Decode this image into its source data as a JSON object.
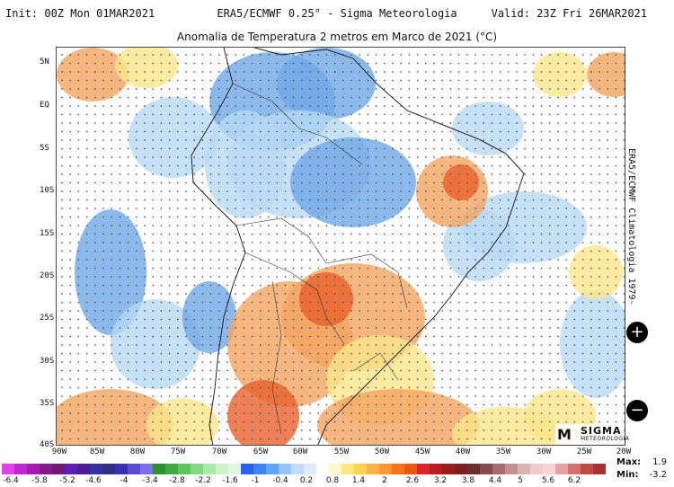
{
  "header": {
    "init": "Init: 00Z Mon 01MAR2021",
    "source": "ERA5/ECMWF 0.25° - Sigma Meteorologia",
    "valid": "Valid: 23Z Fri 26MAR2021"
  },
  "map_title": "Anomalia de Temperatura 2 metros em Marco de 2021 (°C)",
  "side_label": "ERA5/ECMWF Climatologia 1979-",
  "lat_labels": [
    "5N",
    "EQ",
    "5S",
    "10S",
    "15S",
    "20S",
    "25S",
    "30S",
    "35S",
    "40S"
  ],
  "lon_labels": [
    "90W",
    "85W",
    "80W",
    "75W",
    "70W",
    "65W",
    "60W",
    "55W",
    "50W",
    "45W",
    "40W",
    "35W",
    "30W",
    "25W",
    "20W"
  ],
  "colorbar": {
    "labels": [
      "-6.4",
      "-5.8",
      "-5.2",
      "-4.6",
      "-4",
      "-3.4",
      "-2.8",
      "-2.2",
      "-1.6",
      "-1",
      "-0.4",
      "0.2",
      "0.8",
      "1.4",
      "2",
      "2.6",
      "3.2",
      "3.8",
      "4.4",
      "5",
      "5.6",
      "6.2"
    ],
    "colors": [
      "#e040e8",
      "#c026d3",
      "#a21caf",
      "#86198f",
      "#701a75",
      "#5b21b6",
      "#4c1d95",
      "#3730a3",
      "#312e81",
      "#3b2fb0",
      "#5a4ad6",
      "#7c6ee8",
      "#2f8f2f",
      "#3faa3f",
      "#5cc45c",
      "#80d880",
      "#a8eaa8",
      "#c8f4c8",
      "#dff7df",
      "#2563eb",
      "#3b82f6",
      "#60a5fa",
      "#93c5fd",
      "#bfdbfe",
      "#dbeafe",
      "#ffffff",
      "#fff6cc",
      "#ffe680",
      "#ffd24d",
      "#ffb347",
      "#ff9633",
      "#f97316",
      "#ea580c",
      "#dc2626",
      "#b91c1c",
      "#991b1b",
      "#7f1d1d",
      "#6b2f2f",
      "#8a4a4a",
      "#a86b6b",
      "#c48f8f",
      "#dcb3b3",
      "#eecccc",
      "#f5d5d5",
      "#e6a0a0",
      "#d47070",
      "#c04848",
      "#a83030"
    ]
  },
  "stats": {
    "max_label": "Max:",
    "max_value": "1.9",
    "min_label": "Min:",
    "min_value": "-3.2"
  },
  "logo": {
    "name": "SIGMA",
    "sub": "METEOROLOGIA"
  },
  "palette": {
    "cold": "#6fa8e6",
    "light_cold": "#b6d8f5",
    "warm": "#f4a460",
    "light_warm": "#fde68a",
    "hot": "#e8602c"
  }
}
